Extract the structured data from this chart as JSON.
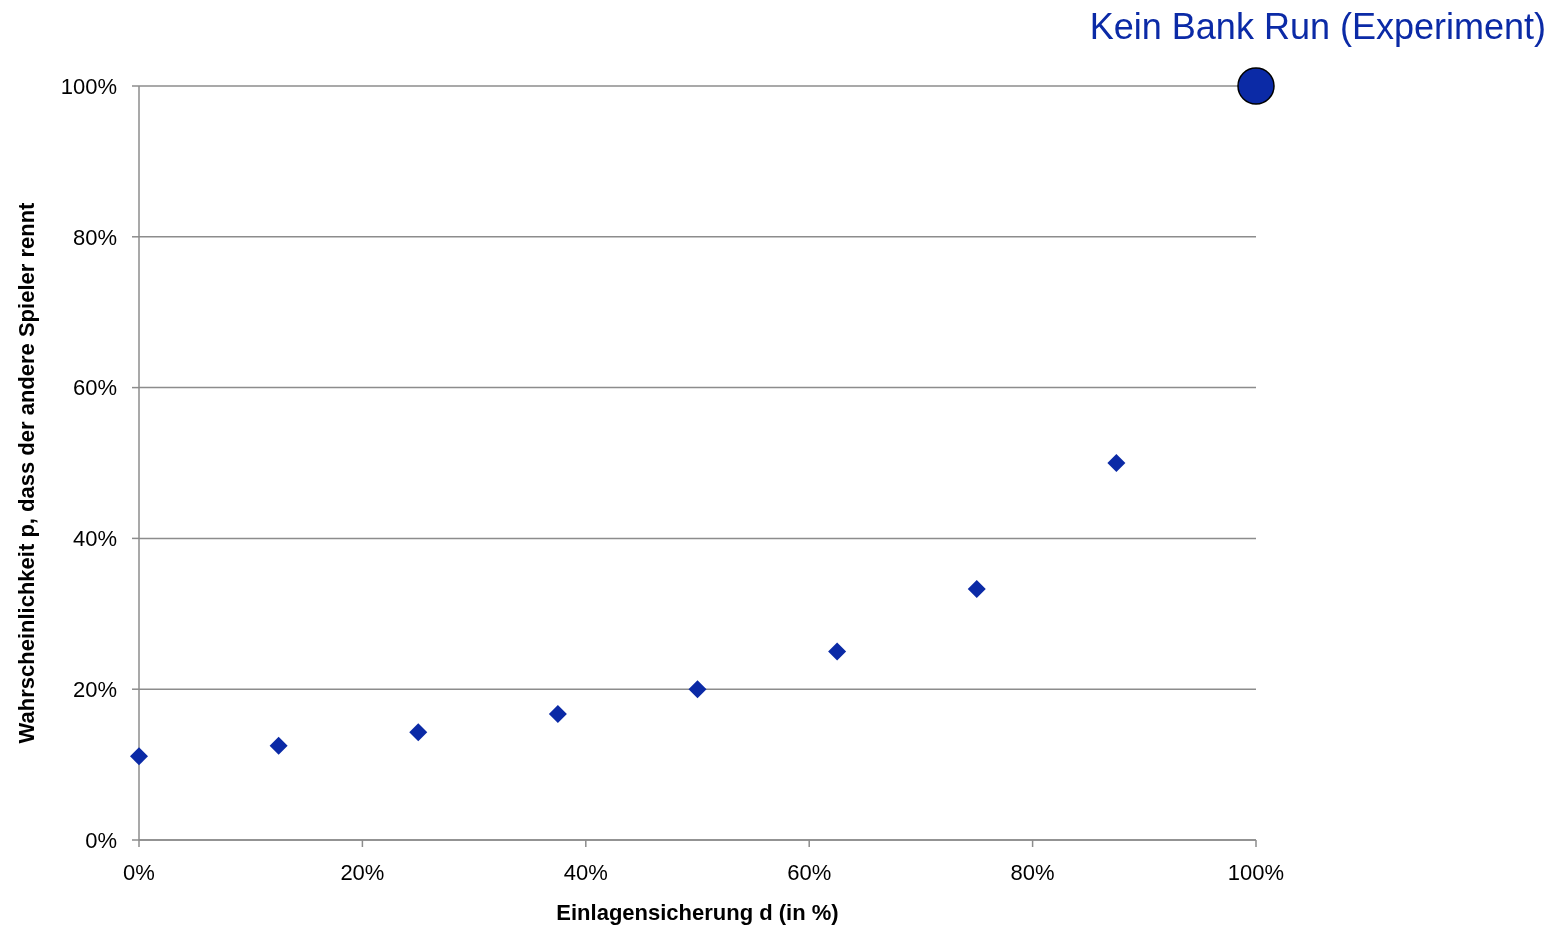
{
  "chart_data": {
    "type": "scatter",
    "xlabel": "Einlagensicherung d (in %)",
    "ylabel": "Wahrscheinlichkeit p, dass der andere Spieler rennt",
    "xlim": [
      0,
      100
    ],
    "ylim": [
      0,
      100
    ],
    "xticks": [
      {
        "value": 0,
        "label": "0%"
      },
      {
        "value": 20,
        "label": "20%"
      },
      {
        "value": 40,
        "label": "40%"
      },
      {
        "value": 60,
        "label": "60%"
      },
      {
        "value": 80,
        "label": "80%"
      },
      {
        "value": 100,
        "label": "100%"
      }
    ],
    "yticks": [
      {
        "value": 0,
        "label": "0%"
      },
      {
        "value": 20,
        "label": "20%"
      },
      {
        "value": 40,
        "label": "40%"
      },
      {
        "value": 60,
        "label": "60%"
      },
      {
        "value": 80,
        "label": "80%"
      },
      {
        "value": 100,
        "label": "100%"
      }
    ],
    "grid": "y",
    "series": [
      {
        "color": "#0b2aa6",
        "marker": "diamond",
        "x": [
          0,
          12.5,
          25,
          37.5,
          50,
          62.5,
          75,
          87.5
        ],
        "values": [
          11.1,
          12.5,
          14.3,
          16.7,
          20,
          25,
          33.3,
          50
        ]
      },
      {
        "color": "#0b2aa6",
        "marker": "circle",
        "x": [
          100
        ],
        "values": [
          100
        ]
      }
    ],
    "annotations": [
      {
        "text": "Kein Bank Run (Experiment)",
        "x": 100,
        "y": 100
      }
    ]
  }
}
